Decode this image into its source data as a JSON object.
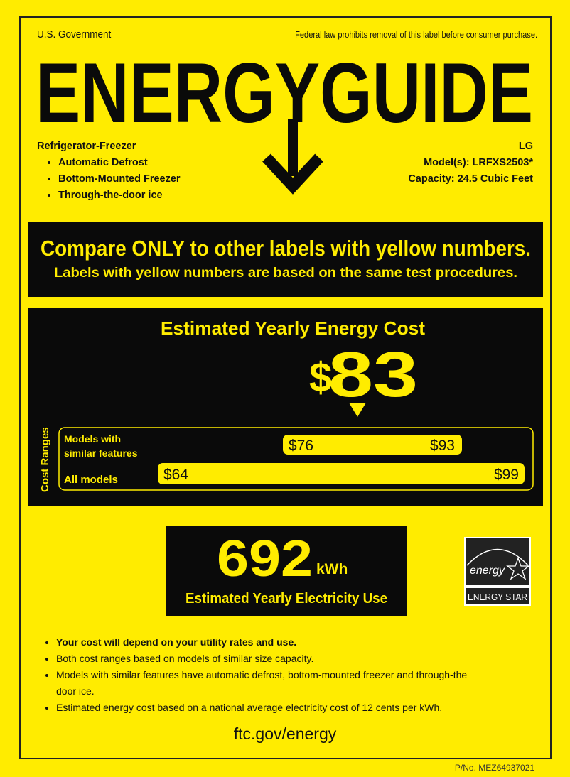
{
  "header": {
    "government": "U.S. Government",
    "legal_notice": "Federal law prohibits removal of this label before consumer purchase.",
    "title": "ENERGYGUIDE"
  },
  "product": {
    "type": "Refrigerator-Freezer",
    "features": [
      "Automatic Defrost",
      "Bottom-Mounted Freezer",
      "Through-the-door ice"
    ],
    "brand": "LG",
    "model": "Model(s): LRFXS2503*",
    "capacity": "Capacity: 24.5 Cubic Feet"
  },
  "compare": {
    "headline": "Compare ONLY to other labels with yellow numbers.",
    "subline": "Labels with yellow numbers are based on the same test procedures."
  },
  "cost": {
    "title": "Estimated Yearly Energy Cost",
    "dollar": "$",
    "value": "83",
    "ranges_label": "Cost Ranges",
    "similar_label_1": "Models with",
    "similar_label_2": "similar features",
    "similar_min": "$76",
    "similar_max": "$93",
    "all_label": "All models",
    "all_min": "$64",
    "all_max": "$99"
  },
  "electricity": {
    "value": "692",
    "unit": "kWh",
    "label": "Estimated Yearly Electricity Use"
  },
  "energy_star": {
    "script": "energy",
    "label": "ENERGY STAR"
  },
  "notes": [
    "Your cost will depend on your utility rates and use.",
    "Both cost ranges based on models of similar size capacity.",
    "Models with similar features have automatic defrost, bottom-mounted freezer and through-the door ice.",
    "Estimated energy cost based on a national average electricity cost of 12 cents per kWh."
  ],
  "footer": {
    "url": "ftc.gov/energy",
    "part_number": "P/No. MEZ64937021"
  },
  "colors": {
    "yellow": "#FFEC00",
    "black": "#0a0a0a"
  }
}
